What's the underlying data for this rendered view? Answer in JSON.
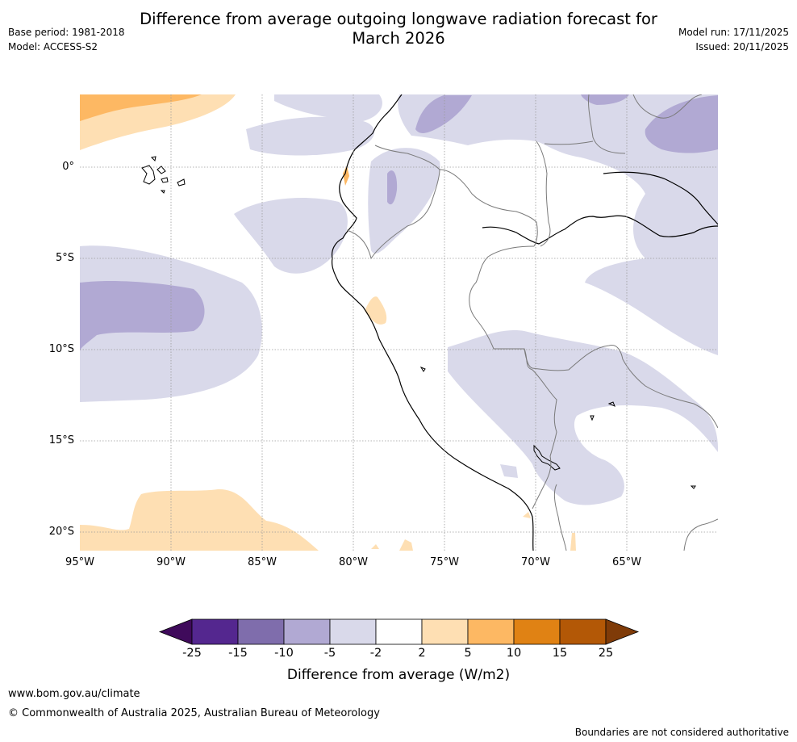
{
  "header": {
    "title_line1": "Difference from average outgoing longwave radiation forecast for",
    "title_line2": "March 2026",
    "base_period": "Base period: 1981-2018",
    "model": "Model: ACCESS-S2",
    "model_run": "Model run: 17/11/2025",
    "issued": "Issued: 20/11/2025"
  },
  "map": {
    "lat_labels": [
      "0°",
      "5°S",
      "10°S",
      "15°S",
      "20°S"
    ],
    "lon_labels": [
      "95°W",
      "90°W",
      "85°W",
      "80°W",
      "75°W",
      "70°W",
      "65°W"
    ]
  },
  "colorbar": {
    "title": "Difference from average (W/m2)",
    "ticks": [
      "-25",
      "-15",
      "-10",
      "-5",
      "-2",
      "2",
      "5",
      "10",
      "15",
      "25"
    ],
    "colors": [
      "#3f0a5b",
      "#54278f",
      "#7f6dac",
      "#b1a9d3",
      "#d9d9ea",
      "#ffffff",
      "#fedfb3",
      "#fdb863",
      "#e08214",
      "#b35806",
      "#7f3b08"
    ]
  },
  "footer": {
    "website": "www.bom.gov.au/climate",
    "copyright": "© Commonwealth of Australia 2025, Australian Bureau of Meteorology",
    "disclaimer": "Boundaries are not considered authoritative"
  }
}
